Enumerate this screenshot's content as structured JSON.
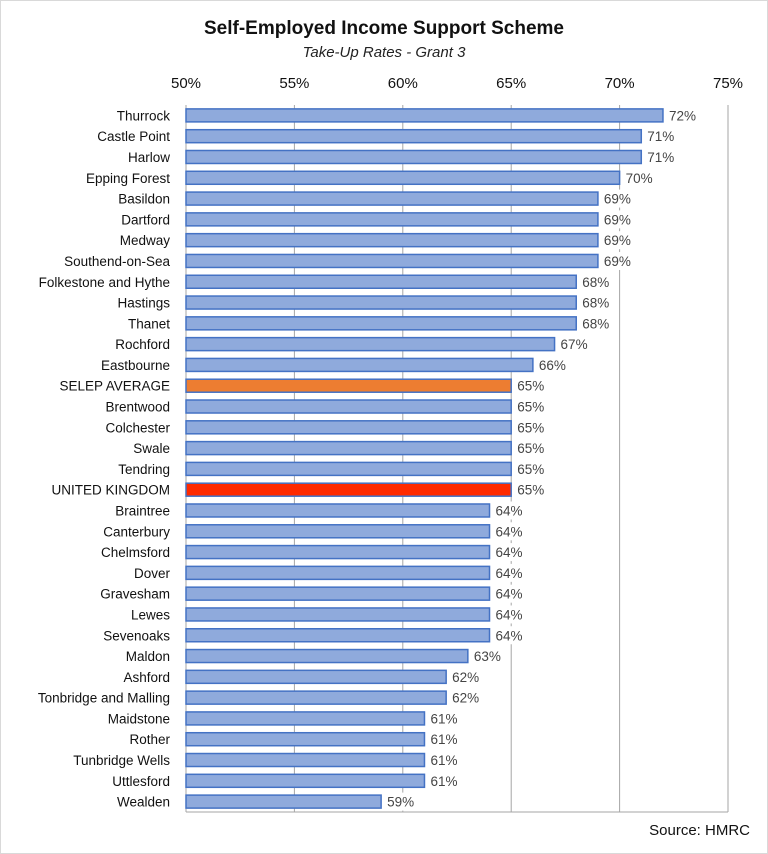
{
  "chart_data": {
    "type": "bar",
    "orientation": "horizontal",
    "title": "Self-Employed Income Support Scheme",
    "subtitle": "Take-Up Rates - Grant 3",
    "xlabel": "",
    "ylabel": "",
    "xlim": [
      50,
      75
    ],
    "x_ticks": [
      "50%",
      "55%",
      "60%",
      "65%",
      "70%",
      "75%"
    ],
    "x_tick_values": [
      50,
      55,
      60,
      65,
      70,
      75
    ],
    "x_axis_position": "top",
    "grid": true,
    "legend": "none",
    "categories": [
      "Thurrock",
      "Castle Point",
      "Harlow",
      "Epping Forest",
      "Basildon",
      "Dartford",
      "Medway",
      "Southend-on-Sea",
      "Folkestone and Hythe",
      "Hastings",
      "Thanet",
      "Rochford",
      "Eastbourne",
      "SELEP AVERAGE",
      "Brentwood",
      "Colchester",
      "Swale",
      "Tendring",
      "UNITED KINGDOM",
      "Braintree",
      "Canterbury",
      "Chelmsford",
      "Dover",
      "Gravesham",
      "Lewes",
      "Sevenoaks",
      "Maldon",
      "Ashford",
      "Tonbridge and Malling",
      "Maidstone",
      "Rother",
      "Tunbridge Wells",
      "Uttlesford",
      "Wealden"
    ],
    "values": [
      72,
      71,
      71,
      70,
      69,
      69,
      69,
      69,
      68,
      68,
      68,
      67,
      66,
      65,
      65,
      65,
      65,
      65,
      65,
      64,
      64,
      64,
      64,
      64,
      64,
      64,
      63,
      62,
      62,
      61,
      61,
      61,
      61,
      59
    ],
    "data_labels": [
      "72%",
      "71%",
      "71%",
      "70%",
      "69%",
      "69%",
      "69%",
      "69%",
      "68%",
      "68%",
      "68%",
      "67%",
      "66%",
      "65%",
      "65%",
      "65%",
      "65%",
      "65%",
      "65%",
      "64%",
      "64%",
      "64%",
      "64%",
      "64%",
      "64%",
      "64%",
      "63%",
      "62%",
      "62%",
      "61%",
      "61%",
      "61%",
      "61%",
      "59%"
    ],
    "colors": {
      "default": "#8faadc",
      "default_border": "#4472c4",
      "SELEP AVERAGE": "#ed7d31",
      "UNITED KINGDOM": "#ff2a00"
    },
    "source": "Source: HMRC"
  }
}
